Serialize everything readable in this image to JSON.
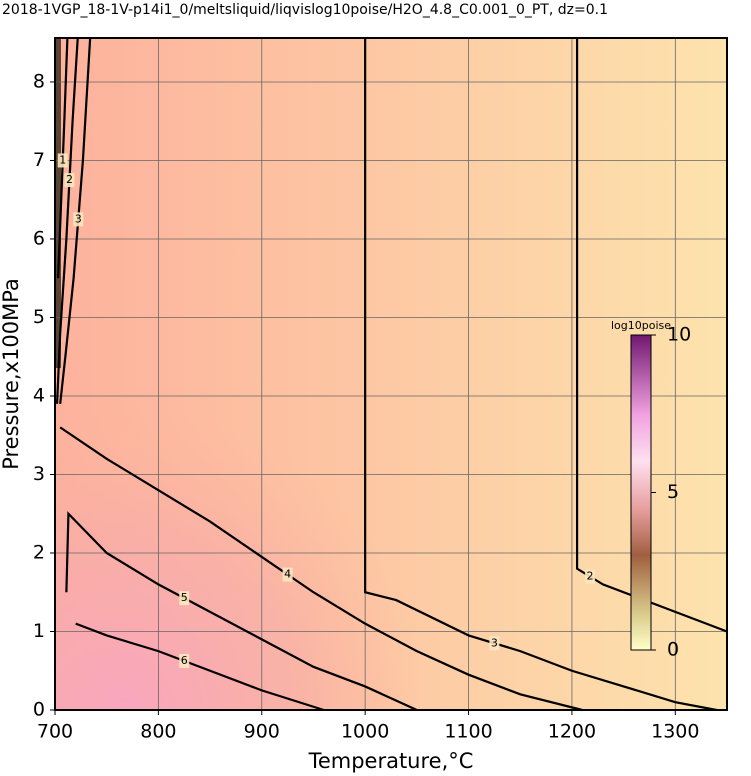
{
  "chart_data": {
    "type": "contour",
    "title": "2018-1VGP_18-1V-p14i1_0/meltsliquid/liqvislog10poise/H2O_4.8_C0.001_0_PT, dz=0.1",
    "x_label": "Temperature,°C",
    "y_label": "Pressure,x100MPa",
    "xlim": [
      700,
      1350
    ],
    "ylim": [
      0,
      8.56
    ],
    "xticks": [
      700,
      800,
      900,
      1000,
      1100,
      1200,
      1300
    ],
    "yticks": [
      0,
      1,
      2,
      3,
      4,
      5,
      6,
      7,
      8
    ],
    "grid": true,
    "series": [
      {
        "name": "2",
        "color": "#000000",
        "x": [
          1205,
          1205,
          1230,
          1300,
          1350
        ],
        "y": [
          8.56,
          1.8,
          1.6,
          1.25,
          1.0
        ]
      },
      {
        "name": "3",
        "color": "#000000",
        "x": [
          1000,
          1000,
          1030,
          1100,
          1150,
          1200,
          1250,
          1300,
          1340
        ],
        "y": [
          8.56,
          1.5,
          1.4,
          0.95,
          0.75,
          0.5,
          0.3,
          0.1,
          0
        ]
      },
      {
        "name": "4",
        "color": "#000000",
        "x": [
          705,
          750,
          800,
          850,
          900,
          950,
          1000,
          1050,
          1100,
          1150,
          1210
        ],
        "y": [
          3.6,
          3.2,
          2.8,
          2.4,
          1.95,
          1.5,
          1.1,
          0.75,
          0.45,
          0.2,
          0
        ]
      },
      {
        "name": "5",
        "color": "#000000",
        "x": [
          711,
          713,
          750,
          800,
          850,
          900,
          950,
          1000,
          1050
        ],
        "y": [
          1.5,
          2.5,
          2.0,
          1.6,
          1.25,
          0.9,
          0.55,
          0.3,
          0
        ]
      },
      {
        "name": "6",
        "color": "#000000",
        "x": [
          720,
          750,
          800,
          850,
          900,
          960
        ],
        "y": [
          1.1,
          0.95,
          0.75,
          0.5,
          0.25,
          0
        ]
      },
      {
        "name": "3",
        "color": "#000000",
        "x": [
          734,
          727,
          718,
          710,
          705
        ],
        "y": [
          8.56,
          7.0,
          5.5,
          4.5,
          3.9
        ]
      },
      {
        "name": "2",
        "color": "#000000",
        "x": [
          722,
          717,
          711,
          705,
          702
        ],
        "y": [
          8.56,
          7.5,
          6.0,
          4.8,
          3.9
        ]
      },
      {
        "name": "1",
        "color": "#000000",
        "x": [
          712,
          709,
          706,
          703
        ],
        "y": [
          8.56,
          7.5,
          6.5,
          5.5
        ]
      }
    ],
    "colorbar": {
      "title": "log10poise",
      "lim": [
        0,
        10
      ],
      "ticks": [
        0,
        5,
        10
      ]
    }
  }
}
